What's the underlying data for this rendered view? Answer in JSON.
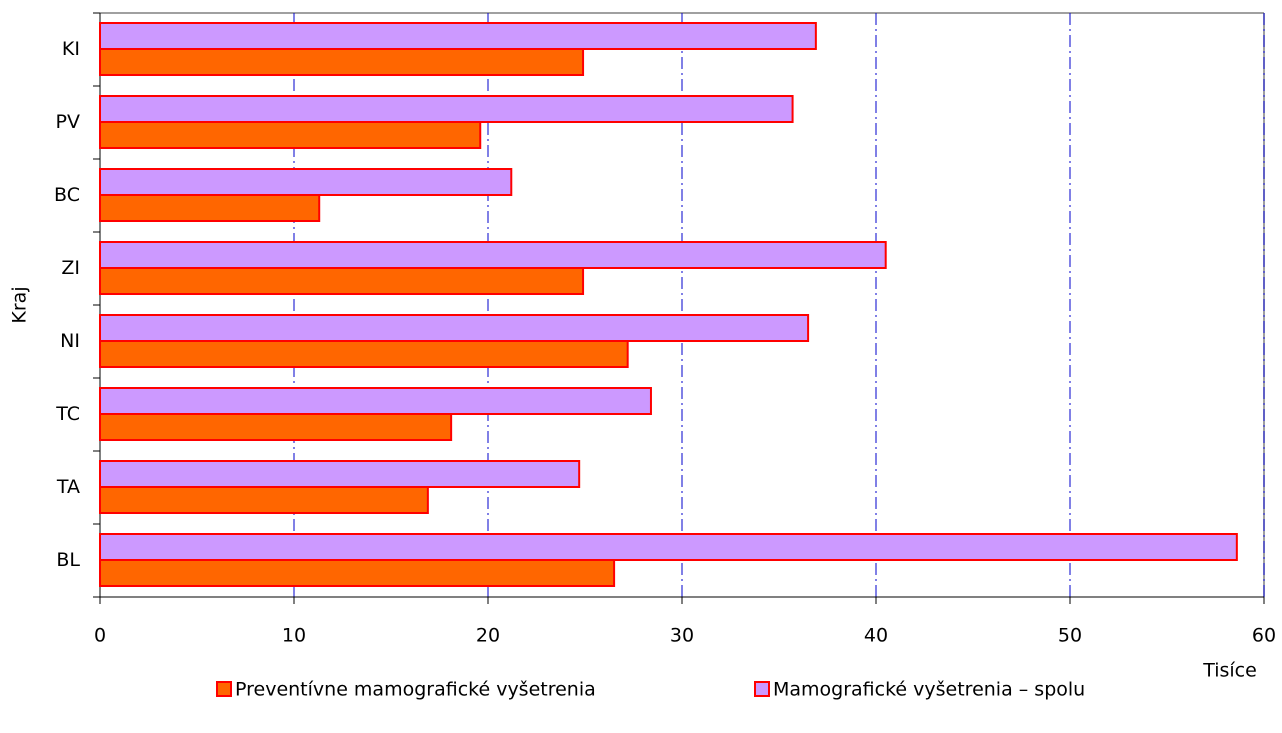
{
  "chart_data": {
    "type": "bar",
    "orientation": "horizontal",
    "categories": [
      "KI",
      "PV",
      "BC",
      "ZI",
      "NI",
      "TC",
      "TA",
      "BL"
    ],
    "series": [
      {
        "name": "Preventívne mamografické vyšetrenia",
        "color": "#ff6600",
        "values": [
          24.9,
          19.6,
          11.3,
          24.9,
          27.2,
          18.1,
          16.9,
          26.5
        ]
      },
      {
        "name": "Mamografické vyšetrenia – spolu",
        "color": "#cc99ff",
        "values": [
          36.9,
          35.7,
          21.2,
          40.5,
          36.5,
          28.4,
          24.7,
          58.6
        ]
      }
    ],
    "xlabel": "Tisíce",
    "ylabel": "Kraj",
    "xlim": [
      0,
      60
    ],
    "xticks": [
      0,
      10,
      20,
      30,
      40,
      50,
      60
    ],
    "grid": true,
    "legend": "bottom"
  }
}
